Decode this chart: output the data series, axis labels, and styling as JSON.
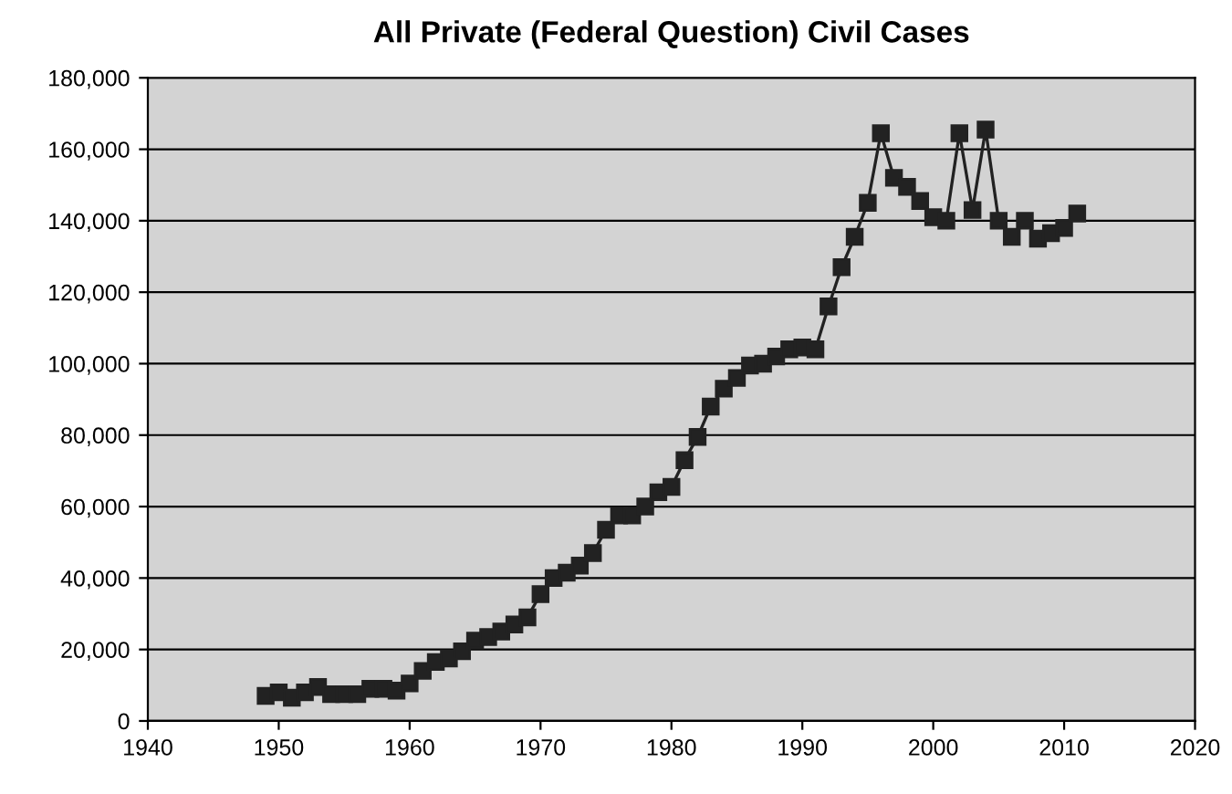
{
  "chart_data": {
    "type": "line",
    "title": "All Private (Federal Question) Civil Cases",
    "x": [
      1949,
      1950,
      1951,
      1952,
      1953,
      1954,
      1955,
      1956,
      1957,
      1958,
      1959,
      1960,
      1961,
      1962,
      1963,
      1964,
      1965,
      1966,
      1967,
      1968,
      1969,
      1970,
      1971,
      1972,
      1973,
      1974,
      1975,
      1976,
      1977,
      1978,
      1979,
      1980,
      1981,
      1982,
      1983,
      1984,
      1985,
      1986,
      1987,
      1988,
      1989,
      1990,
      1991,
      1992,
      1993,
      1994,
      1995,
      1996,
      1997,
      1998,
      1999,
      2000,
      2001,
      2002,
      2003,
      2004,
      2005,
      2006,
      2007,
      2008,
      2009,
      2010,
      2011
    ],
    "values": [
      7000,
      8000,
      6500,
      8000,
      9500,
      7500,
      7500,
      7500,
      9000,
      9000,
      8500,
      10500,
      14000,
      16500,
      17500,
      19500,
      22500,
      23500,
      25000,
      27000,
      29000,
      35500,
      40000,
      41500,
      43500,
      47000,
      53500,
      57500,
      57500,
      60000,
      64000,
      65500,
      73000,
      79500,
      88000,
      93000,
      96000,
      99500,
      100000,
      102000,
      104000,
      104500,
      104000,
      116000,
      127000,
      135500,
      145000,
      164500,
      152000,
      149500,
      145500,
      141000,
      140000,
      164500,
      143000,
      165500,
      140000,
      135500,
      140000,
      135000,
      136500,
      138000,
      142000
    ],
    "color": "#222222",
    "marker": "square",
    "line_style": "solid",
    "grid": "y",
    "xlim": [
      1940,
      2020
    ],
    "xticks": [
      1940,
      1950,
      1960,
      1970,
      1980,
      1990,
      2000,
      2010,
      2020
    ],
    "ylim": [
      0,
      180000
    ],
    "yticks": [
      {
        "value": 0,
        "label": "0"
      },
      {
        "value": 20000,
        "label": "20,000"
      },
      {
        "value": 40000,
        "label": "40,000"
      },
      {
        "value": 60000,
        "label": "60,000"
      },
      {
        "value": 80000,
        "label": "80,000"
      },
      {
        "value": 100000,
        "label": "100,000"
      },
      {
        "value": 120000,
        "label": "120,000"
      },
      {
        "value": 140000,
        "label": "140,000"
      },
      {
        "value": 160000,
        "label": "160,000"
      },
      {
        "value": 180000,
        "label": "180,000"
      }
    ]
  }
}
